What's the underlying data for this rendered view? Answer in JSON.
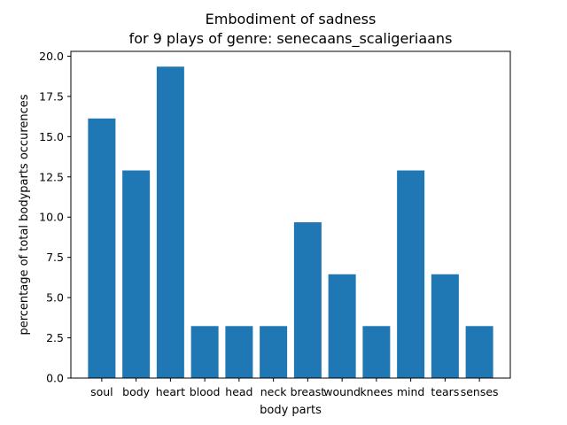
{
  "chart_data": {
    "type": "bar",
    "title_line1": "Embodiment of sadness",
    "title_line2": "for 9 plays of genre: senecaans_scaligeriaans",
    "xlabel": "body parts",
    "ylabel": "percentage of total bodyparts occurences",
    "categories": [
      "soul",
      "body",
      "heart",
      "blood",
      "head",
      "neck",
      "breast",
      "wound",
      "knees",
      "mind",
      "tears",
      "senses"
    ],
    "values": [
      16.13,
      12.9,
      19.35,
      3.23,
      3.23,
      3.23,
      9.68,
      6.45,
      3.23,
      12.9,
      6.45,
      3.23
    ],
    "ylim": [
      0,
      20.3
    ],
    "yticks": [
      "0.0",
      "2.5",
      "5.0",
      "7.5",
      "10.0",
      "12.5",
      "15.0",
      "17.5",
      "20.0"
    ],
    "bar_color": "#1f77b4",
    "grid": false,
    "legend": "none"
  }
}
